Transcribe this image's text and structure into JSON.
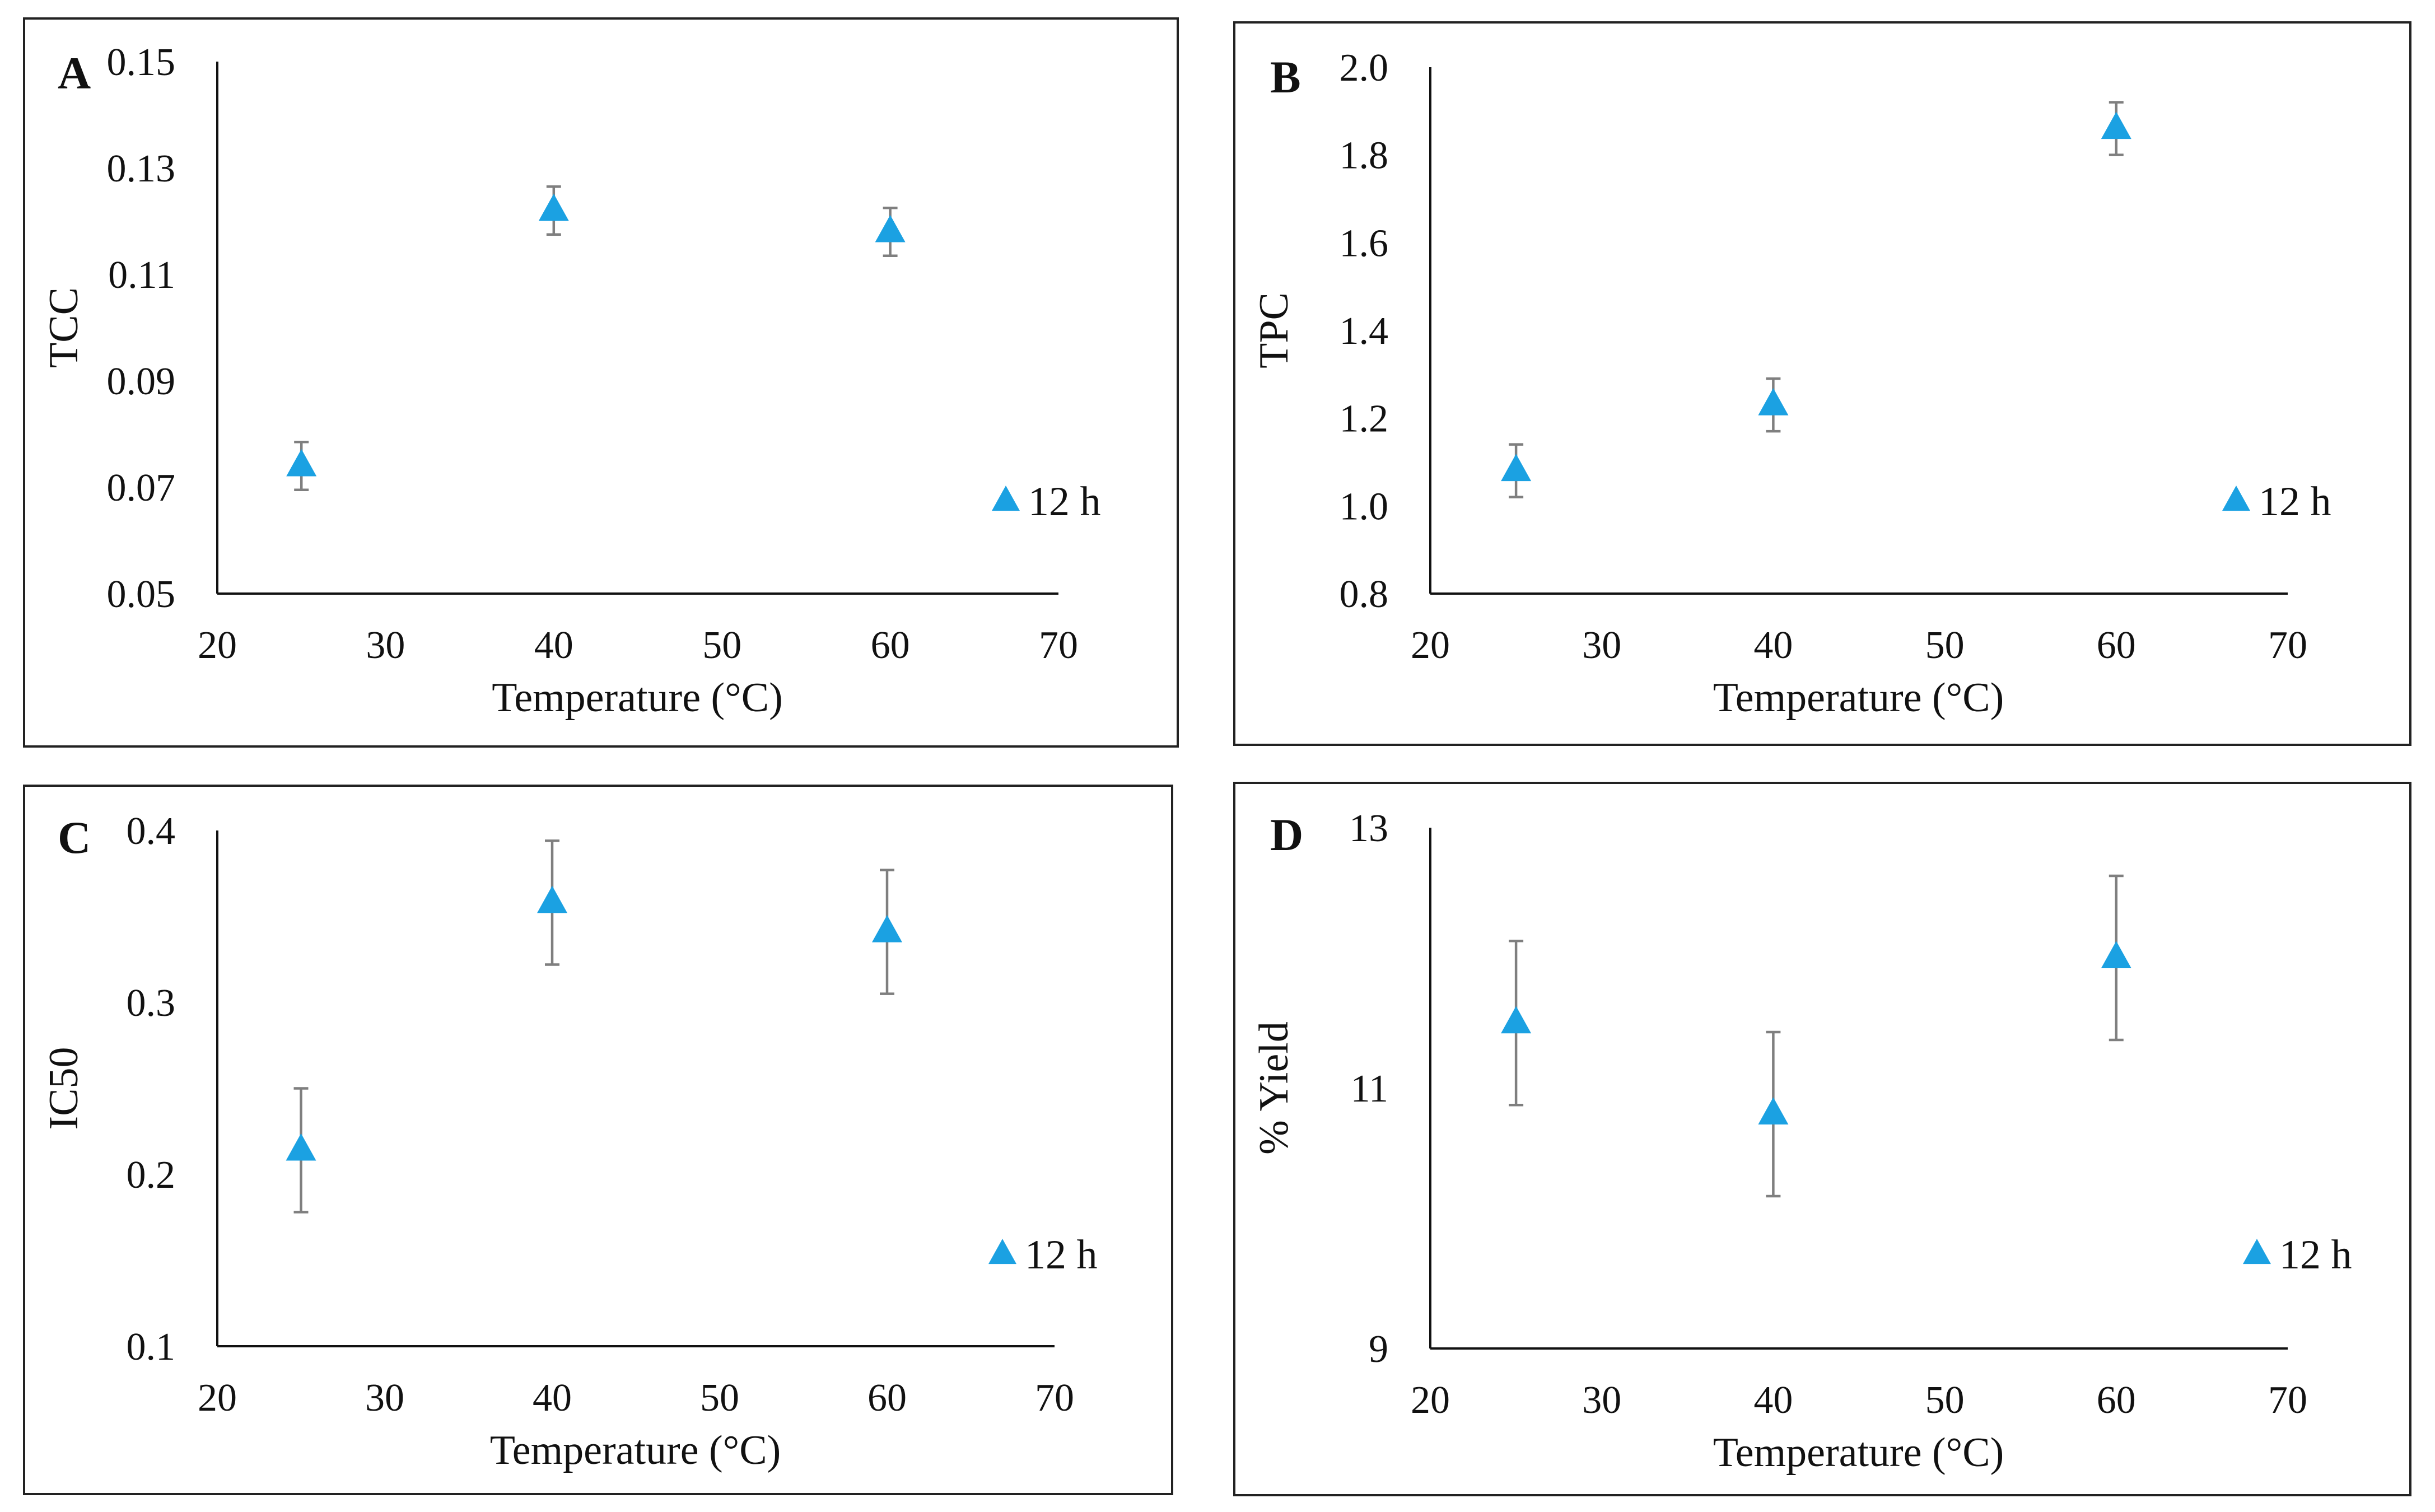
{
  "marker_color": "#1ba1e2",
  "errorbar_color": "#7f7f7f",
  "chart_data": [
    {
      "panel": "A",
      "type": "scatter",
      "xlabel": "Temperature (°C)",
      "ylabel": "TCC",
      "xlim": [
        20,
        70
      ],
      "ylim": [
        0.05,
        0.15
      ],
      "xticks": [
        "20",
        "30",
        "40",
        "50",
        "60",
        "70"
      ],
      "yticks": [
        "0.05",
        "0.07",
        "0.09",
        "0.11",
        "0.13",
        "0.15"
      ],
      "legend": "12 h",
      "series": [
        {
          "name": "12 h",
          "x": [
            25,
            40,
            60
          ],
          "y": [
            0.074,
            0.122,
            0.118
          ],
          "err": [
            0.0045,
            0.0045,
            0.0045
          ]
        }
      ]
    },
    {
      "panel": "B",
      "type": "scatter",
      "xlabel": "Temperature (°C)",
      "ylabel": "TPC",
      "xlim": [
        20,
        70
      ],
      "ylim": [
        0.8,
        2.0
      ],
      "xticks": [
        "20",
        "30",
        "40",
        "50",
        "60",
        "70"
      ],
      "yticks": [
        "0.8",
        "1.0",
        "1.2",
        "1.4",
        "1.6",
        "1.8",
        "2.0"
      ],
      "legend": "12 h",
      "series": [
        {
          "name": "12 h",
          "x": [
            25,
            40,
            60
          ],
          "y": [
            1.08,
            1.23,
            1.86
          ],
          "err": [
            0.06,
            0.06,
            0.06
          ]
        }
      ]
    },
    {
      "panel": "C",
      "type": "scatter",
      "xlabel": "Temperature (°C)",
      "ylabel": "IC50",
      "xlim": [
        20,
        70
      ],
      "ylim": [
        0.1,
        0.4
      ],
      "xticks": [
        "20",
        "30",
        "40",
        "50",
        "60",
        "70"
      ],
      "yticks": [
        "0.1",
        "0.2",
        "0.3",
        "0.4"
      ],
      "legend": "12 h",
      "series": [
        {
          "name": "12 h",
          "x": [
            25,
            40,
            60
          ],
          "y": [
            0.214,
            0.358,
            0.341
          ],
          "err": [
            0.036,
            0.036,
            0.036
          ]
        }
      ]
    },
    {
      "panel": "D",
      "type": "scatter",
      "xlabel": "Temperature (°C)",
      "ylabel": "% Yield",
      "xlim": [
        20,
        70
      ],
      "ylim": [
        9,
        13
      ],
      "xticks": [
        "20",
        "30",
        "40",
        "50",
        "60",
        "70"
      ],
      "yticks": [
        "9",
        "11",
        "13"
      ],
      "legend": "12 h",
      "series": [
        {
          "name": "12 h",
          "x": [
            25,
            40,
            60
          ],
          "y": [
            11.5,
            10.8,
            12.0
          ],
          "err": [
            0.63,
            0.63,
            0.63
          ]
        }
      ]
    }
  ]
}
